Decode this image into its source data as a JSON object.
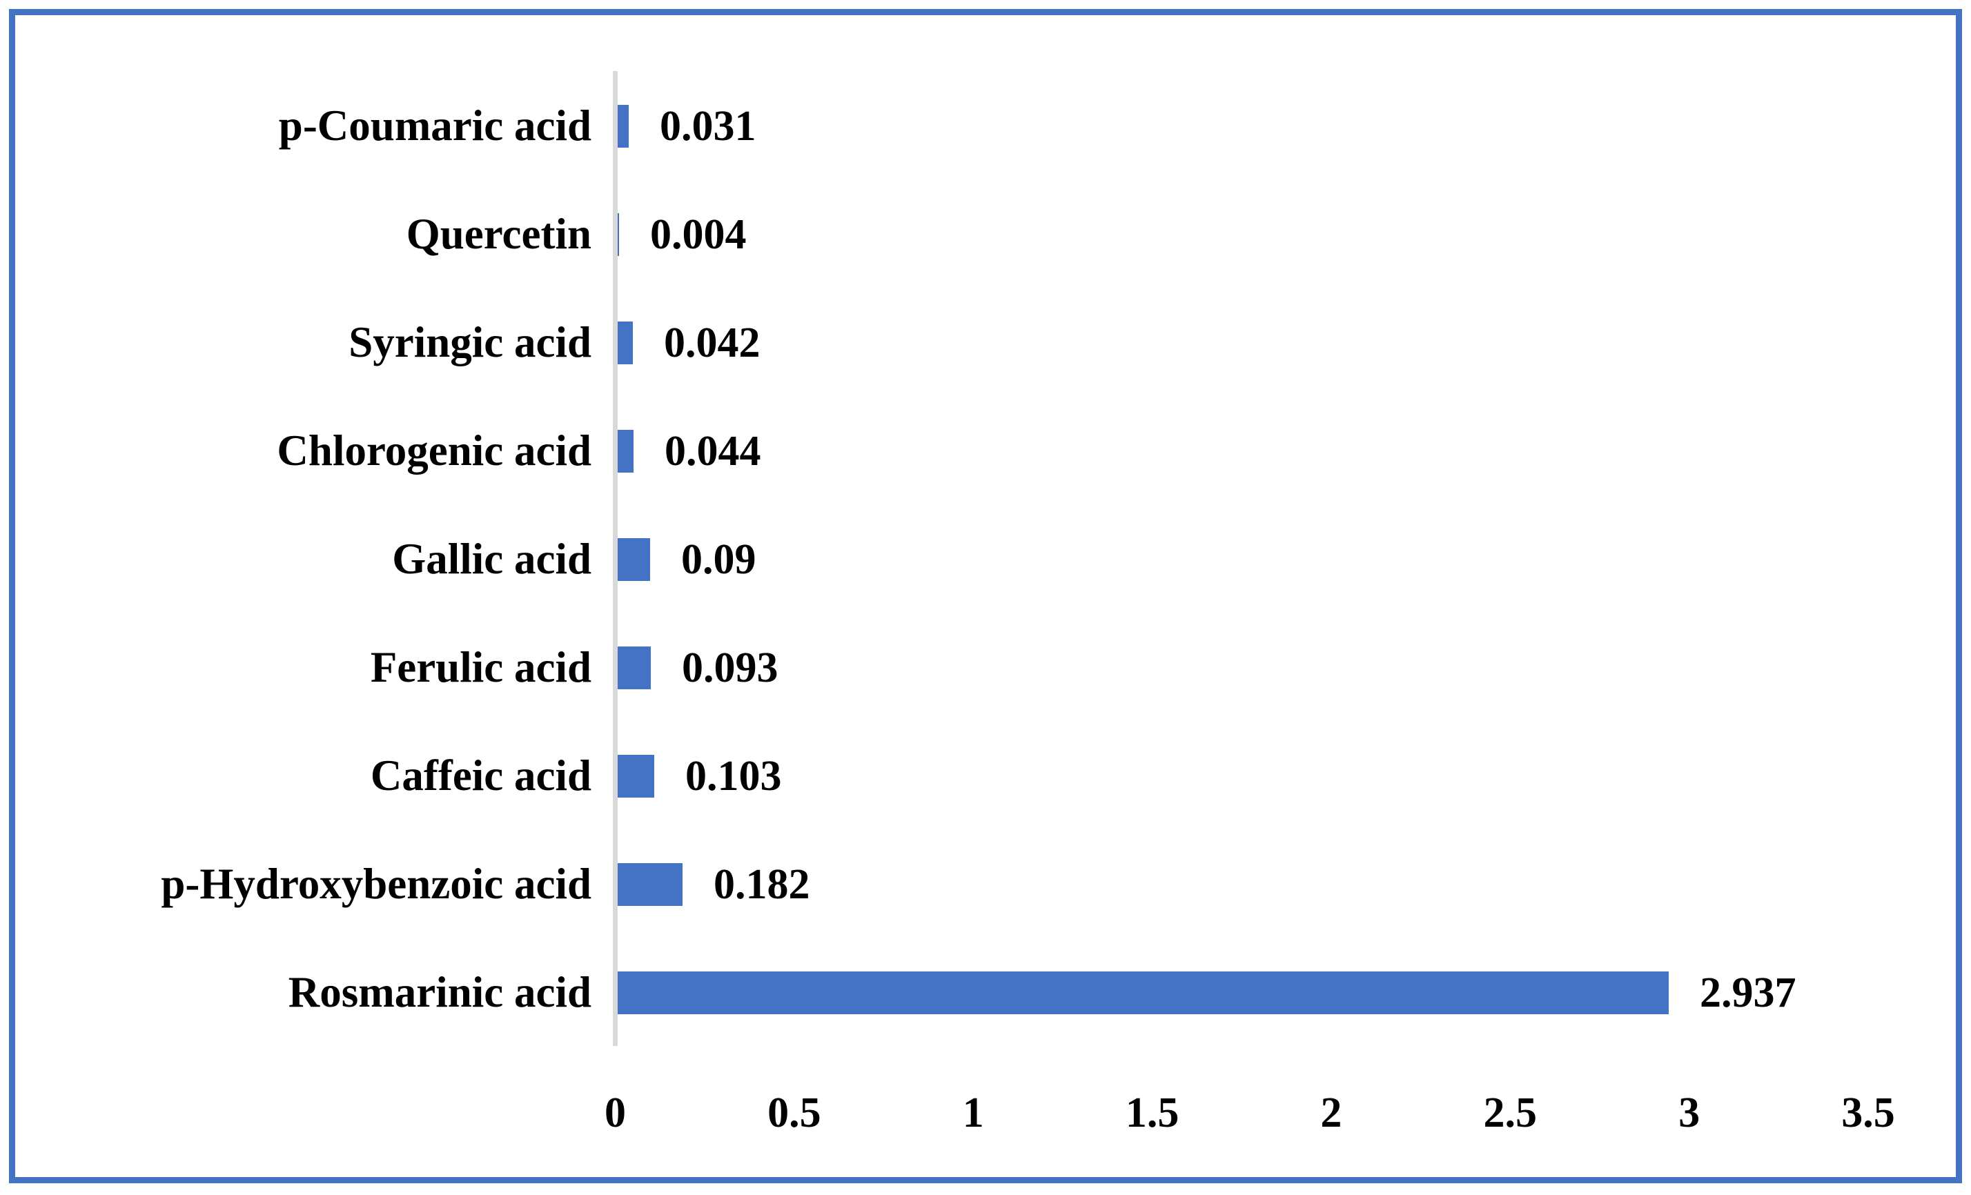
{
  "chart_data": {
    "type": "bar",
    "orientation": "horizontal",
    "title": "",
    "xlabel": "",
    "ylabel": "",
    "categories": [
      "p-Coumaric acid",
      "Quercetin",
      "Syringic acid",
      "Chlorogenic acid",
      "Gallic acid",
      "Ferulic acid",
      "Caffeic acid",
      "p-Hydroxybenzoic acid",
      "Rosmarinic acid"
    ],
    "values": [
      0.031,
      0.004,
      0.042,
      0.044,
      0.09,
      0.093,
      0.103,
      0.182,
      2.937
    ],
    "data_labels": [
      "0.031",
      "0.004",
      "0.042",
      "0.044",
      "0.09",
      "0.093",
      "0.103",
      "0.182",
      "2.937"
    ],
    "x_ticks": [
      "0",
      "0.5",
      "1",
      "1.5",
      "2",
      "2.5",
      "3",
      "3.5"
    ],
    "x_tick_values": [
      0,
      0.5,
      1,
      1.5,
      2,
      2.5,
      3,
      3.5
    ],
    "xlim": [
      0,
      3.5
    ],
    "grid": false,
    "legend": false,
    "colors": {
      "bar": "#4472C4",
      "frame_border": "#4472C4",
      "axis_line": "#D9D9D9",
      "text": "#000000",
      "background": "#FFFFFF"
    }
  }
}
